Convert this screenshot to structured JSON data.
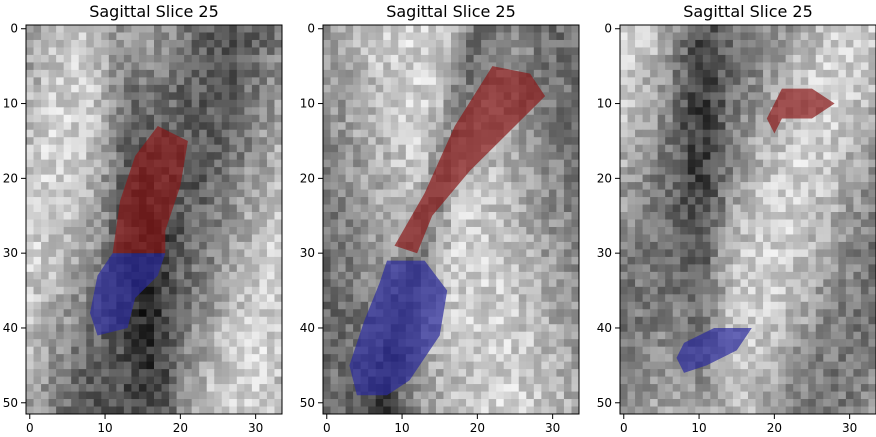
{
  "figure": {
    "colors": {
      "mri_dark": "#141414",
      "mri_mid": "#7a7a7a",
      "mri_light": "#e6e6e6",
      "overlay_red": "#8b1a1a",
      "overlay_blue": "#2b2b9e",
      "axis": "#000000",
      "background": "#ffffff"
    },
    "panels": [
      {
        "title": "Sagittal Slice 25",
        "x_ticks": [
          "0",
          "10",
          "20",
          "30"
        ],
        "y_ticks": [
          "0",
          "10",
          "20",
          "30",
          "40",
          "50"
        ],
        "x_tick_values": [
          0,
          10,
          20,
          30
        ],
        "y_tick_values": [
          0,
          10,
          20,
          30,
          40,
          50
        ],
        "x_range": [
          -0.5,
          33.5
        ],
        "y_range": [
          -0.5,
          51.5
        ],
        "red_region": [
          [
            17,
            13
          ],
          [
            21,
            15
          ],
          [
            20,
            21
          ],
          [
            18,
            27
          ],
          [
            18,
            30
          ],
          [
            11,
            30
          ],
          [
            12,
            23
          ],
          [
            14,
            17
          ]
        ],
        "blue_region": [
          [
            11,
            30
          ],
          [
            18,
            30
          ],
          [
            17,
            33
          ],
          [
            14,
            36
          ],
          [
            13,
            40
          ],
          [
            9,
            41
          ],
          [
            8,
            38
          ],
          [
            9,
            33
          ]
        ]
      },
      {
        "title": "Sagittal Slice 25",
        "x_ticks": [
          "0",
          "10",
          "20",
          "30"
        ],
        "y_ticks": [
          "0",
          "10",
          "20",
          "30",
          "40",
          "50"
        ],
        "x_tick_values": [
          0,
          10,
          20,
          30
        ],
        "y_tick_values": [
          0,
          10,
          20,
          30,
          40,
          50
        ],
        "x_range": [
          -0.5,
          33.5
        ],
        "y_range": [
          -0.5,
          51.5
        ],
        "red_region": [
          [
            22,
            5
          ],
          [
            27,
            6
          ],
          [
            29,
            9
          ],
          [
            25,
            13
          ],
          [
            19,
            19
          ],
          [
            14,
            25
          ],
          [
            12,
            30
          ],
          [
            9,
            29
          ],
          [
            13,
            22
          ],
          [
            17,
            13
          ]
        ],
        "blue_region": [
          [
            8,
            31
          ],
          [
            13,
            31
          ],
          [
            16,
            35
          ],
          [
            15,
            41
          ],
          [
            11,
            47
          ],
          [
            8,
            49
          ],
          [
            4,
            49
          ],
          [
            3,
            45
          ],
          [
            5,
            39
          ],
          [
            7,
            34
          ]
        ]
      },
      {
        "title": "Sagittal Slice 25",
        "x_ticks": [
          "0",
          "10",
          "20",
          "30"
        ],
        "y_ticks": [
          "0",
          "10",
          "20",
          "30",
          "40",
          "50"
        ],
        "x_tick_values": [
          0,
          10,
          20,
          30
        ],
        "y_tick_values": [
          0,
          10,
          20,
          30,
          40,
          50
        ],
        "x_range": [
          -0.5,
          33.5
        ],
        "y_range": [
          -0.5,
          51.5
        ],
        "red_region": [
          [
            21,
            8
          ],
          [
            25,
            8
          ],
          [
            28,
            10
          ],
          [
            25,
            12
          ],
          [
            21,
            12
          ],
          [
            20,
            14
          ],
          [
            19,
            12
          ],
          [
            20,
            10
          ]
        ],
        "blue_region": [
          [
            12,
            40
          ],
          [
            17,
            40
          ],
          [
            15,
            43
          ],
          [
            11,
            45
          ],
          [
            8,
            46
          ],
          [
            7,
            44
          ],
          [
            8,
            42
          ]
        ]
      }
    ]
  }
}
